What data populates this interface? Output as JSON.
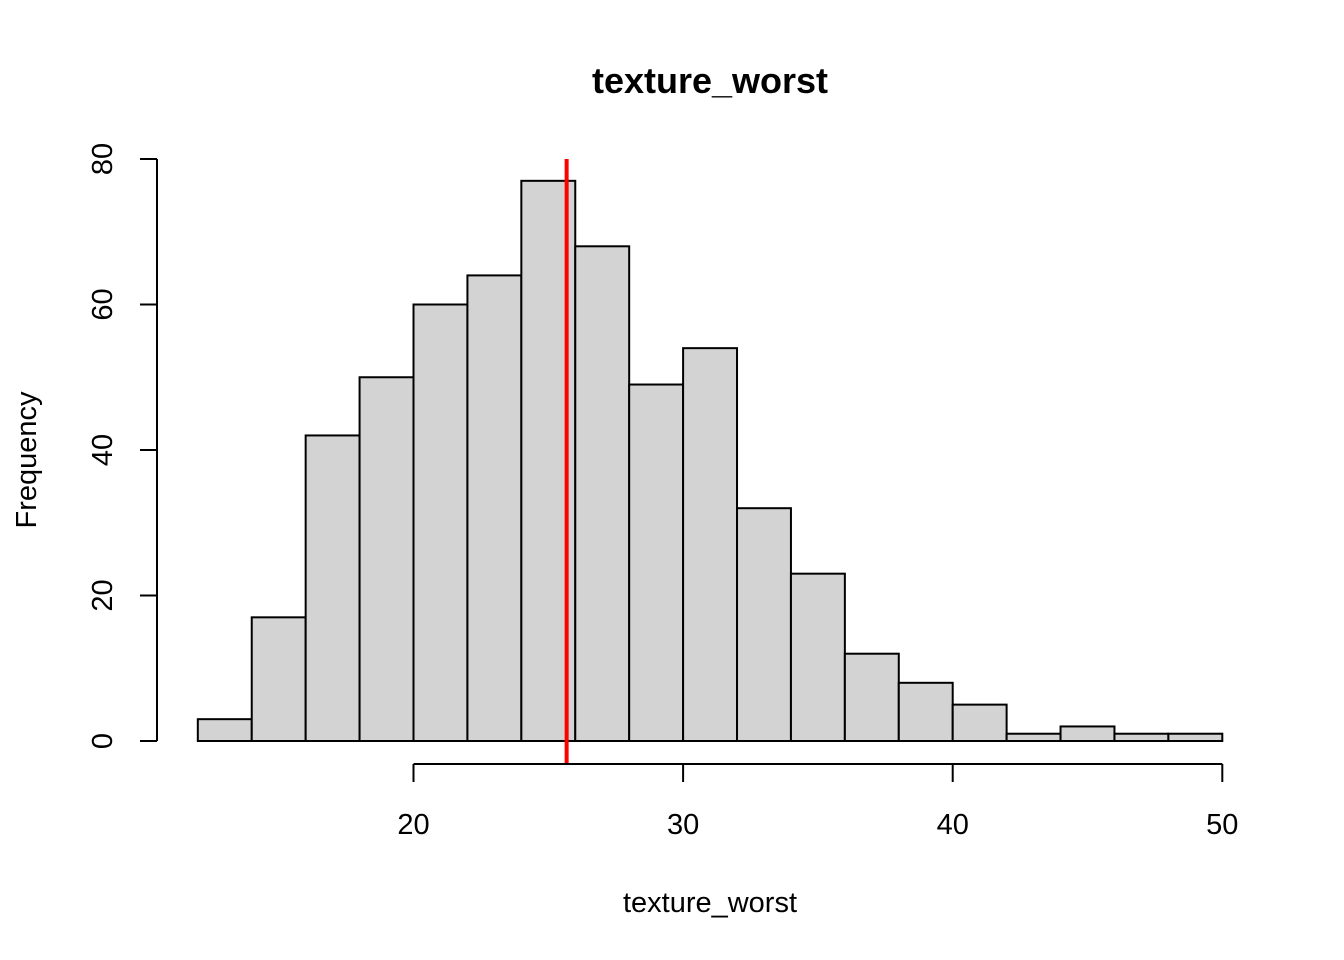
{
  "chart_data": {
    "type": "bar",
    "title": "texture_worst",
    "xlabel": "texture_worst",
    "ylabel": "Frequency",
    "bin_edges": [
      12,
      14,
      16,
      18,
      20,
      22,
      24,
      26,
      28,
      30,
      32,
      34,
      36,
      38,
      40,
      42,
      44,
      46,
      48,
      50
    ],
    "values": [
      3,
      17,
      42,
      50,
      60,
      64,
      77,
      68,
      49,
      54,
      32,
      23,
      12,
      8,
      5,
      1,
      2,
      1,
      1
    ],
    "xlim": [
      12,
      50
    ],
    "ylim": [
      0,
      80
    ],
    "x_ticks": [
      20,
      30,
      40,
      50
    ],
    "y_ticks": [
      0,
      20,
      40,
      60,
      80
    ],
    "reference_line": {
      "x": 25.68,
      "color": "#ff0000"
    },
    "bar_fill": "#d3d3d3",
    "bar_stroke": "#000000",
    "grid": false
  }
}
